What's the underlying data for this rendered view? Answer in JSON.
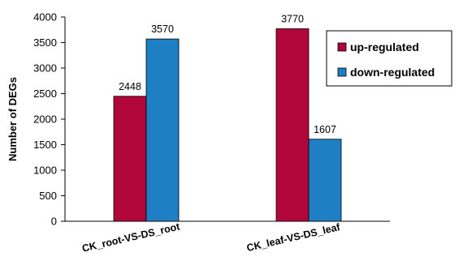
{
  "chart_data": {
    "type": "bar",
    "categories": [
      "CK_root-VS-DS_root",
      "CK_leaf-VS-DS_leaf"
    ],
    "series": [
      {
        "name": "up-regulated",
        "values": [
          2448,
          3770
        ],
        "color": "#b0063a"
      },
      {
        "name": "down-regulated",
        "values": [
          3570,
          1607
        ],
        "color": "#1f7fc4"
      }
    ],
    "title": "",
    "xlabel": "",
    "ylabel": "Number of DEGs",
    "ylim": [
      0,
      4000
    ],
    "yticks": [
      0,
      500,
      1000,
      1500,
      2000,
      2500,
      3000,
      3500,
      4000
    ],
    "grid": false,
    "legend": "top-right"
  }
}
